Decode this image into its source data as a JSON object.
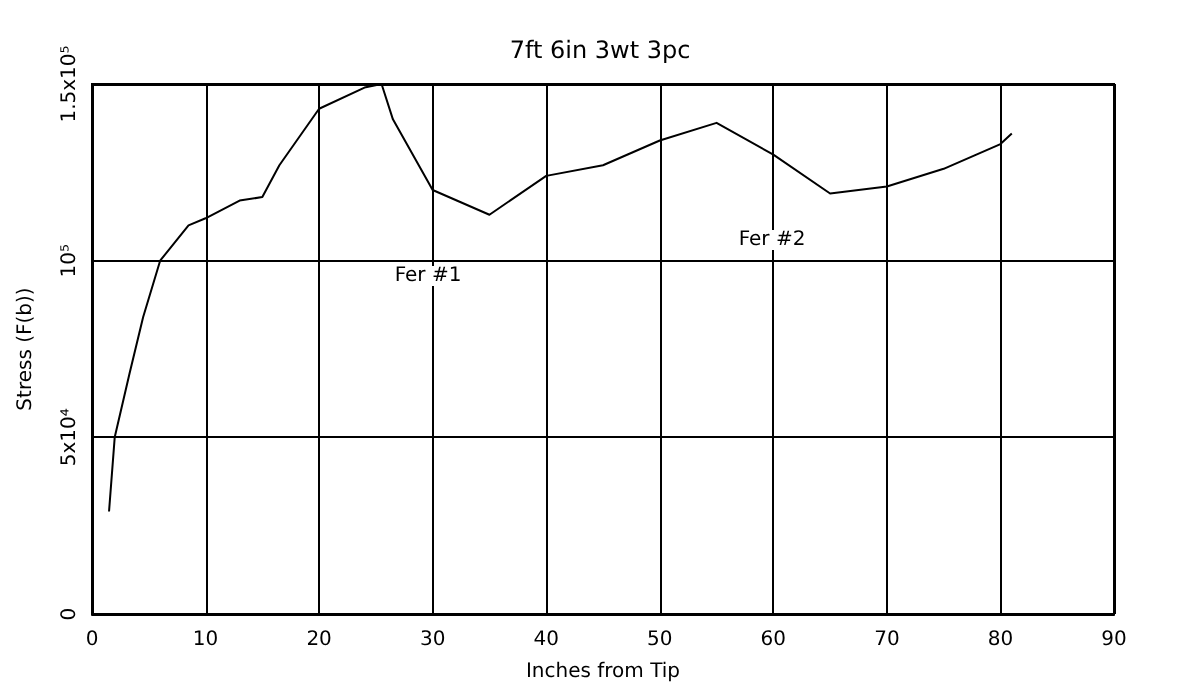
{
  "chart_data": {
    "type": "line",
    "title": "7ft 6in 3wt 3pc",
    "xlabel": "Inches from Tip",
    "ylabel": "Stress (F(b))",
    "x": [
      1.5,
      2,
      3.3,
      4.5,
      6,
      8.5,
      10,
      13,
      15,
      16.5,
      20,
      24,
      25.5,
      26.5,
      30,
      35,
      40,
      45,
      50,
      55,
      60,
      65,
      70,
      75,
      80,
      81
    ],
    "series": [
      {
        "color": "#000000",
        "values": [
          29000,
          50000,
          68000,
          84000,
          100000,
          110000,
          112000,
          117000,
          118000,
          127000,
          143000,
          149000,
          150000,
          140000,
          120000,
          113000,
          124000,
          127000,
          134000,
          139000,
          130000,
          119000,
          121000,
          126000,
          133000,
          136000
        ]
      }
    ],
    "xlim": [
      0,
      90
    ],
    "xticks": [
      0,
      10,
      20,
      30,
      40,
      50,
      60,
      70,
      80,
      90
    ],
    "ylim": [
      0,
      150000
    ],
    "yticks": [
      0,
      {
        "value": 50000,
        "label": "5x10⁴"
      },
      {
        "value": 100000,
        "label": "10⁵"
      },
      {
        "value": 150000,
        "label": "1.5x10⁵"
      }
    ],
    "grid": true,
    "marker": "none",
    "line_style": "solid",
    "annotations": [
      "Fer #1",
      "Fer #2"
    ]
  }
}
